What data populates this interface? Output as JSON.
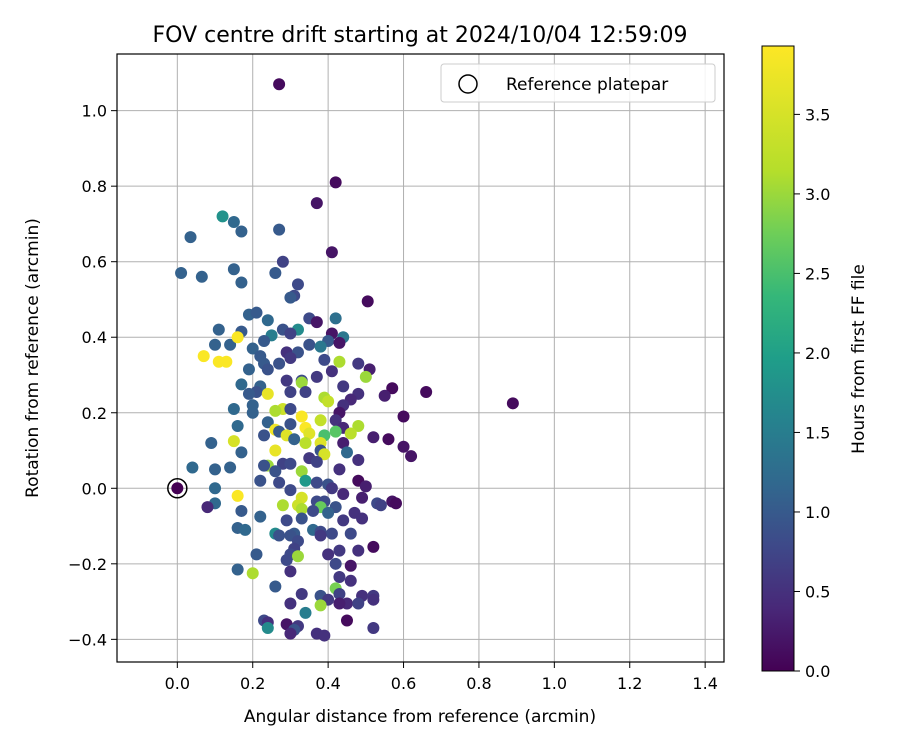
{
  "chart_data": {
    "type": "scatter",
    "title": "FOV centre drift starting at 2024/10/04 12:59:09",
    "xlabel": "Angular distance from reference (arcmin)",
    "ylabel": "Rotation from reference (arcmin)",
    "xlim": [
      -0.16,
      1.45
    ],
    "ylim": [
      -0.46,
      1.15
    ],
    "xticks": [
      0.0,
      0.2,
      0.4,
      0.6,
      0.8,
      1.0,
      1.2,
      1.4
    ],
    "xtick_labels": [
      "0.0",
      "0.2",
      "0.4",
      "0.6",
      "0.8",
      "1.0",
      "1.2",
      "1.4"
    ],
    "yticks": [
      -0.4,
      -0.2,
      0.0,
      0.2,
      0.4,
      0.6,
      0.8,
      1.0
    ],
    "ytick_labels": [
      "−0.4",
      "−0.2",
      "0.0",
      "0.2",
      "0.4",
      "0.6",
      "0.8",
      "1.0"
    ],
    "grid": true,
    "legend": {
      "placement": "top-right",
      "entries": [
        "Reference platepar"
      ]
    },
    "reference_point": {
      "x": 0.0,
      "y": 0.0
    },
    "colorbar": {
      "label": "Hours from first FF file",
      "range": [
        0.0,
        3.93
      ],
      "ticks": [
        0.0,
        0.5,
        1.0,
        1.5,
        2.0,
        2.5,
        3.0,
        3.5
      ],
      "tick_labels": [
        "0.0",
        "0.5",
        "1.0",
        "1.5",
        "2.0",
        "2.5",
        "3.0",
        "3.5"
      ],
      "colormap": "viridis"
    },
    "points": [
      [
        0.27,
        1.07,
        0.1
      ],
      [
        0.42,
        0.81,
        0.1
      ],
      [
        0.37,
        0.755,
        0.2
      ],
      [
        0.12,
        0.72,
        1.8
      ],
      [
        0.15,
        0.705,
        1.2
      ],
      [
        0.17,
        0.68,
        1.1
      ],
      [
        0.27,
        0.685,
        1.0
      ],
      [
        0.035,
        0.665,
        1.1
      ],
      [
        0.41,
        0.625,
        0.2
      ],
      [
        0.01,
        0.57,
        1.1
      ],
      [
        0.065,
        0.56,
        1.1
      ],
      [
        0.28,
        0.6,
        0.7
      ],
      [
        0.26,
        0.57,
        1.0
      ],
      [
        0.15,
        0.58,
        1.1
      ],
      [
        0.17,
        0.545,
        1.1
      ],
      [
        0.32,
        0.54,
        0.8
      ],
      [
        0.31,
        0.51,
        0.8
      ],
      [
        0.3,
        0.505,
        1.0
      ],
      [
        0.505,
        0.495,
        0.1
      ],
      [
        0.19,
        0.46,
        1.1
      ],
      [
        0.21,
        0.465,
        1.0
      ],
      [
        0.35,
        0.45,
        0.8
      ],
      [
        0.42,
        0.45,
        1.3
      ],
      [
        0.37,
        0.44,
        0.2
      ],
      [
        0.24,
        0.445,
        1.2
      ],
      [
        0.32,
        0.42,
        1.7
      ],
      [
        0.11,
        0.42,
        1.1
      ],
      [
        0.28,
        0.42,
        0.9
      ],
      [
        0.41,
        0.41,
        0.2
      ],
      [
        0.17,
        0.415,
        1.0
      ],
      [
        0.25,
        0.405,
        1.5
      ],
      [
        0.3,
        0.41,
        0.7
      ],
      [
        0.23,
        0.39,
        1.0
      ],
      [
        0.4,
        0.39,
        1.0
      ],
      [
        0.44,
        0.4,
        1.4
      ],
      [
        0.43,
        0.385,
        0.2
      ],
      [
        0.35,
        0.38,
        0.9
      ],
      [
        0.1,
        0.38,
        1.1
      ],
      [
        0.14,
        0.38,
        1.1
      ],
      [
        0.16,
        0.4,
        3.9
      ],
      [
        0.38,
        0.375,
        1.4
      ],
      [
        0.2,
        0.37,
        1.1
      ],
      [
        0.29,
        0.36,
        0.5
      ],
      [
        0.32,
        0.36,
        0.9
      ],
      [
        0.07,
        0.35,
        3.9
      ],
      [
        0.22,
        0.35,
        1.0
      ],
      [
        0.3,
        0.345,
        0.6
      ],
      [
        0.39,
        0.34,
        0.8
      ],
      [
        0.43,
        0.335,
        3.1
      ],
      [
        0.11,
        0.335,
        3.9
      ],
      [
        0.13,
        0.335,
        3.9
      ],
      [
        0.23,
        0.33,
        1.0
      ],
      [
        0.27,
        0.33,
        0.9
      ],
      [
        0.48,
        0.33,
        0.6
      ],
      [
        0.41,
        0.31,
        0.5
      ],
      [
        0.24,
        0.315,
        0.9
      ],
      [
        0.19,
        0.315,
        1.1
      ],
      [
        0.51,
        0.315,
        0.3
      ],
      [
        0.37,
        0.295,
        0.6
      ],
      [
        0.5,
        0.295,
        3.0
      ],
      [
        0.29,
        0.285,
        0.6
      ],
      [
        0.33,
        0.285,
        0.8
      ],
      [
        0.33,
        0.28,
        3.0
      ],
      [
        0.17,
        0.275,
        1.2
      ],
      [
        0.22,
        0.27,
        1.1
      ],
      [
        0.44,
        0.27,
        0.6
      ],
      [
        0.57,
        0.265,
        0.1
      ],
      [
        0.66,
        0.255,
        0.1
      ],
      [
        0.21,
        0.255,
        0.9
      ],
      [
        0.3,
        0.255,
        0.7
      ],
      [
        0.34,
        0.255,
        0.7
      ],
      [
        0.19,
        0.25,
        1.0
      ],
      [
        0.24,
        0.25,
        3.7
      ],
      [
        0.48,
        0.25,
        0.5
      ],
      [
        0.55,
        0.245,
        0.3
      ],
      [
        0.39,
        0.24,
        3.1
      ],
      [
        0.46,
        0.235,
        0.4
      ],
      [
        0.4,
        0.23,
        3.3
      ],
      [
        0.2,
        0.22,
        1.1
      ],
      [
        0.44,
        0.22,
        0.5
      ],
      [
        0.89,
        0.225,
        0.1
      ],
      [
        0.28,
        0.21,
        3.4
      ],
      [
        0.15,
        0.21,
        1.2
      ],
      [
        0.3,
        0.21,
        0.8
      ],
      [
        0.26,
        0.205,
        3.1
      ],
      [
        0.43,
        0.2,
        0.2
      ],
      [
        0.2,
        0.2,
        1.1
      ],
      [
        0.6,
        0.19,
        0.1
      ],
      [
        0.33,
        0.19,
        3.9
      ],
      [
        0.38,
        0.18,
        3.3
      ],
      [
        0.42,
        0.18,
        0.5
      ],
      [
        0.24,
        0.175,
        1.1
      ],
      [
        0.3,
        0.17,
        0.9
      ],
      [
        0.16,
        0.165,
        1.2
      ],
      [
        0.48,
        0.165,
        3.1
      ],
      [
        0.34,
        0.16,
        3.9
      ],
      [
        0.44,
        0.16,
        0.4
      ],
      [
        0.26,
        0.155,
        3.8
      ],
      [
        0.42,
        0.15,
        2.6
      ],
      [
        0.27,
        0.15,
        1.0
      ],
      [
        0.35,
        0.145,
        3.6
      ],
      [
        0.46,
        0.145,
        3.2
      ],
      [
        0.23,
        0.14,
        0.9
      ],
      [
        0.29,
        0.14,
        3.6
      ],
      [
        0.39,
        0.14,
        2.5
      ],
      [
        0.52,
        0.135,
        0.3
      ],
      [
        0.31,
        0.13,
        1.1
      ],
      [
        0.15,
        0.125,
        3.5
      ],
      [
        0.56,
        0.13,
        0.1
      ],
      [
        0.38,
        0.12,
        3.6
      ],
      [
        0.34,
        0.12,
        3.2
      ],
      [
        0.44,
        0.12,
        0.3
      ],
      [
        0.09,
        0.12,
        1.1
      ],
      [
        0.6,
        0.11,
        0.2
      ],
      [
        0.38,
        0.1,
        0.9
      ],
      [
        0.26,
        0.1,
        3.7
      ],
      [
        0.45,
        0.095,
        1.2
      ],
      [
        0.39,
        0.09,
        3.5
      ],
      [
        0.17,
        0.095,
        1.1
      ],
      [
        0.62,
        0.085,
        0.2
      ],
      [
        0.35,
        0.08,
        0.6
      ],
      [
        0.48,
        0.075,
        0.5
      ],
      [
        0.37,
        0.07,
        0.7
      ],
      [
        0.28,
        0.065,
        0.7
      ],
      [
        0.3,
        0.065,
        0.8
      ],
      [
        0.24,
        0.06,
        3.0
      ],
      [
        0.23,
        0.06,
        0.9
      ],
      [
        0.43,
        0.05,
        0.5
      ],
      [
        0.14,
        0.055,
        1.1
      ],
      [
        0.1,
        0.05,
        1.1
      ],
      [
        0.04,
        0.055,
        1.2
      ],
      [
        0.33,
        0.045,
        3.0
      ],
      [
        0.26,
        0.045,
        0.9
      ],
      [
        0.34,
        0.02,
        1.9
      ],
      [
        0.22,
        0.02,
        0.9
      ],
      [
        0.27,
        0.015,
        0.8
      ],
      [
        0.48,
        0.02,
        0.1
      ],
      [
        0.37,
        0.015,
        0.8
      ],
      [
        0.4,
        0.01,
        0.9
      ],
      [
        0.5,
        0.005,
        0.3
      ],
      [
        0.41,
        0.0,
        0.6
      ],
      [
        0.1,
        0.0,
        1.2
      ],
      [
        0.3,
        -0.005,
        0.8
      ],
      [
        0.44,
        -0.015,
        0.4
      ],
      [
        0.16,
        -0.02,
        3.9
      ],
      [
        0.33,
        -0.025,
        3.5
      ],
      [
        0.49,
        -0.025,
        0.3
      ],
      [
        0.37,
        -0.035,
        0.8
      ],
      [
        0.39,
        -0.035,
        0.8
      ],
      [
        0.53,
        -0.04,
        0.8
      ],
      [
        0.57,
        -0.035,
        0.2
      ],
      [
        0.58,
        -0.04,
        0.1
      ],
      [
        0.1,
        -0.04,
        1.2
      ],
      [
        0.28,
        -0.045,
        3.1
      ],
      [
        0.32,
        -0.045,
        3.4
      ],
      [
        0.54,
        -0.045,
        0.7
      ],
      [
        0.38,
        -0.05,
        2.7
      ],
      [
        0.42,
        -0.05,
        0.9
      ],
      [
        0.08,
        -0.05,
        0.4
      ],
      [
        0.33,
        -0.055,
        3.1
      ],
      [
        0.17,
        -0.06,
        1.0
      ],
      [
        0.36,
        -0.06,
        0.8
      ],
      [
        0.4,
        -0.065,
        1.1
      ],
      [
        0.47,
        -0.065,
        0.5
      ],
      [
        0.22,
        -0.075,
        1.1
      ],
      [
        0.33,
        -0.08,
        0.9
      ],
      [
        0.29,
        -0.085,
        0.8
      ],
      [
        0.44,
        -0.085,
        0.6
      ],
      [
        0.49,
        -0.08,
        0.5
      ],
      [
        0.16,
        -0.105,
        1.1
      ],
      [
        0.36,
        -0.11,
        1.2
      ],
      [
        0.31,
        -0.12,
        1.0
      ],
      [
        0.38,
        -0.115,
        0.8
      ],
      [
        0.18,
        -0.11,
        1.2
      ],
      [
        0.26,
        -0.12,
        1.7
      ],
      [
        0.3,
        -0.125,
        0.9
      ],
      [
        0.41,
        -0.12,
        0.8
      ],
      [
        0.27,
        -0.125,
        0.9
      ],
      [
        0.46,
        -0.12,
        0.8
      ],
      [
        0.38,
        -0.125,
        0.6
      ],
      [
        0.32,
        -0.14,
        0.8
      ],
      [
        0.52,
        -0.155,
        0.1
      ],
      [
        0.31,
        -0.16,
        0.7
      ],
      [
        0.43,
        -0.165,
        0.6
      ],
      [
        0.48,
        -0.165,
        0.5
      ],
      [
        0.21,
        -0.175,
        1.0
      ],
      [
        0.3,
        -0.175,
        0.8
      ],
      [
        0.4,
        -0.175,
        0.5
      ],
      [
        0.32,
        -0.18,
        3.0
      ],
      [
        0.29,
        -0.19,
        0.8
      ],
      [
        0.42,
        -0.2,
        0.8
      ],
      [
        0.46,
        -0.205,
        0.2
      ],
      [
        0.16,
        -0.215,
        1.1
      ],
      [
        0.2,
        -0.225,
        3.1
      ],
      [
        0.3,
        -0.22,
        0.5
      ],
      [
        0.43,
        -0.235,
        0.6
      ],
      [
        0.46,
        -0.245,
        0.5
      ],
      [
        0.26,
        -0.26,
        1.0
      ],
      [
        0.42,
        -0.265,
        2.8
      ],
      [
        0.43,
        -0.28,
        0.7
      ],
      [
        0.38,
        -0.285,
        0.9
      ],
      [
        0.49,
        -0.285,
        0.5
      ],
      [
        0.33,
        -0.28,
        0.6
      ],
      [
        0.4,
        -0.295,
        0.6
      ],
      [
        0.52,
        -0.285,
        0.6
      ],
      [
        0.52,
        -0.295,
        0.5
      ],
      [
        0.45,
        -0.305,
        0.4
      ],
      [
        0.43,
        -0.305,
        0.3
      ],
      [
        0.48,
        -0.305,
        0.7
      ],
      [
        0.38,
        -0.31,
        3.0
      ],
      [
        0.3,
        -0.305,
        0.5
      ],
      [
        0.34,
        -0.33,
        1.5
      ],
      [
        0.23,
        -0.35,
        0.8
      ],
      [
        0.24,
        -0.355,
        0.5
      ],
      [
        0.45,
        -0.35,
        0.1
      ],
      [
        0.24,
        -0.37,
        1.7
      ],
      [
        0.29,
        -0.36,
        0.2
      ],
      [
        0.32,
        -0.365,
        0.6
      ],
      [
        0.52,
        -0.37,
        0.6
      ],
      [
        0.31,
        -0.375,
        0.9
      ],
      [
        0.3,
        -0.385,
        0.4
      ],
      [
        0.37,
        -0.385,
        0.5
      ],
      [
        0.39,
        -0.39,
        0.5
      ]
    ]
  }
}
